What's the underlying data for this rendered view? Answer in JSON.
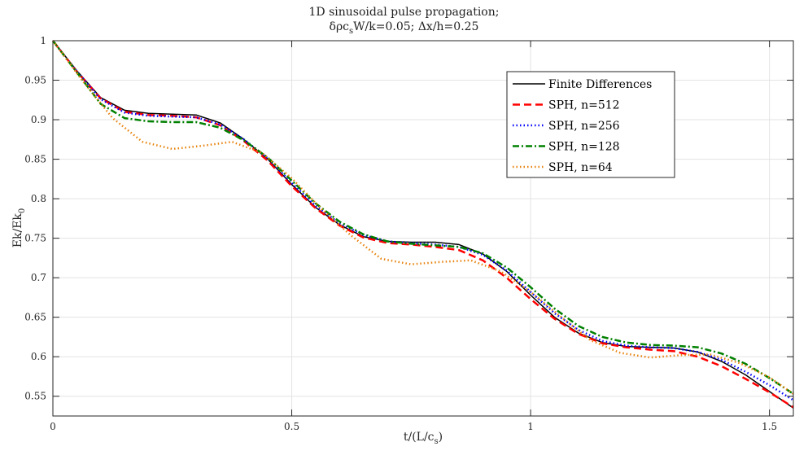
{
  "chart_data": {
    "type": "line",
    "title_line1": "1D sinusoidal pulse propagation;",
    "title_line2_prefix": "δρc",
    "title_line2_sub": "s",
    "title_line2_suffix": "W/k=0.05; Δx/h=0.25",
    "xlabel_prefix": "t/(L/c",
    "xlabel_sub": "s",
    "xlabel_suffix": ")",
    "ylabel_prefix": "Ek/Ek",
    "ylabel_sub": "0",
    "xlim": [
      0,
      1.55
    ],
    "ylim": [
      0.525,
      1.0
    ],
    "xticks": [
      0,
      0.5,
      1,
      1.5
    ],
    "xtick_labels": [
      "0",
      "0.5",
      "1",
      "1.5"
    ],
    "yticks": [
      0.55,
      0.6,
      0.65,
      0.7,
      0.75,
      0.8,
      0.85,
      0.9,
      0.95,
      1
    ],
    "ytick_labels": [
      "0.55",
      "0.6",
      "0.65",
      "0.7",
      "0.75",
      "0.8",
      "0.85",
      "0.9",
      "0.95",
      "1"
    ],
    "grid": true,
    "legend_position": "top-right",
    "series": [
      {
        "name": "Finite Differences",
        "color": "#000000",
        "style": "solid",
        "x": [
          0,
          0.05,
          0.1,
          0.15,
          0.2,
          0.25,
          0.3,
          0.35,
          0.4,
          0.45,
          0.5,
          0.55,
          0.6,
          0.65,
          0.7,
          0.75,
          0.8,
          0.85,
          0.9,
          0.95,
          1.0,
          1.05,
          1.1,
          1.15,
          1.2,
          1.25,
          1.3,
          1.35,
          1.4,
          1.45,
          1.5,
          1.55
        ],
        "y": [
          1.0,
          0.962,
          0.928,
          0.912,
          0.908,
          0.907,
          0.906,
          0.896,
          0.875,
          0.85,
          0.818,
          0.789,
          0.767,
          0.752,
          0.746,
          0.745,
          0.745,
          0.742,
          0.73,
          0.708,
          0.678,
          0.65,
          0.63,
          0.618,
          0.613,
          0.612,
          0.611,
          0.606,
          0.594,
          0.577,
          0.556,
          0.535
        ]
      },
      {
        "name": "SPH, n=512",
        "color": "#ff0000",
        "style": "dashed",
        "x": [
          0,
          0.05,
          0.1,
          0.15,
          0.2,
          0.25,
          0.3,
          0.35,
          0.4,
          0.45,
          0.5,
          0.55,
          0.6,
          0.65,
          0.7,
          0.75,
          0.8,
          0.85,
          0.9,
          0.95,
          1.0,
          1.05,
          1.1,
          1.15,
          1.2,
          1.25,
          1.3,
          1.35,
          1.4,
          1.45,
          1.5,
          1.55
        ],
        "y": [
          1.0,
          0.961,
          0.927,
          0.91,
          0.906,
          0.905,
          0.903,
          0.893,
          0.873,
          0.848,
          0.816,
          0.788,
          0.766,
          0.751,
          0.744,
          0.742,
          0.739,
          0.735,
          0.722,
          0.7,
          0.673,
          0.648,
          0.629,
          0.617,
          0.612,
          0.609,
          0.607,
          0.6,
          0.588,
          0.572,
          0.555,
          0.536
        ]
      },
      {
        "name": "SPH, n=256",
        "color": "#0000ff",
        "style": "dotted",
        "x": [
          0,
          0.05,
          0.1,
          0.15,
          0.2,
          0.25,
          0.3,
          0.35,
          0.4,
          0.45,
          0.5,
          0.55,
          0.6,
          0.65,
          0.7,
          0.75,
          0.8,
          0.85,
          0.9,
          0.95,
          1.0,
          1.05,
          1.1,
          1.15,
          1.2,
          1.25,
          1.3,
          1.35,
          1.4,
          1.45,
          1.5,
          1.55
        ],
        "y": [
          1.0,
          0.961,
          0.926,
          0.909,
          0.905,
          0.904,
          0.903,
          0.894,
          0.875,
          0.851,
          0.82,
          0.791,
          0.769,
          0.754,
          0.746,
          0.744,
          0.742,
          0.739,
          0.729,
          0.709,
          0.682,
          0.655,
          0.634,
          0.62,
          0.614,
          0.612,
          0.611,
          0.606,
          0.596,
          0.581,
          0.564,
          0.545
        ]
      },
      {
        "name": "SPH, n=128",
        "color": "#008000",
        "style": "dashdot",
        "x": [
          0,
          0.05,
          0.1,
          0.15,
          0.2,
          0.25,
          0.3,
          0.35,
          0.4,
          0.45,
          0.5,
          0.55,
          0.6,
          0.65,
          0.7,
          0.75,
          0.8,
          0.85,
          0.9,
          0.95,
          1.0,
          1.05,
          1.1,
          1.15,
          1.2,
          1.25,
          1.3,
          1.35,
          1.4,
          1.45,
          1.5,
          1.55
        ],
        "y": [
          1.0,
          0.96,
          0.92,
          0.902,
          0.898,
          0.897,
          0.897,
          0.89,
          0.874,
          0.852,
          0.823,
          0.794,
          0.771,
          0.755,
          0.746,
          0.743,
          0.741,
          0.739,
          0.731,
          0.713,
          0.688,
          0.661,
          0.639,
          0.625,
          0.618,
          0.615,
          0.614,
          0.612,
          0.604,
          0.591,
          0.573,
          0.553
        ]
      },
      {
        "name": "SPH, n=64",
        "color": "#e8820c",
        "style": "dotted",
        "x": [
          0,
          0.0625,
          0.125,
          0.1875,
          0.25,
          0.3125,
          0.375,
          0.4375,
          0.5,
          0.5625,
          0.625,
          0.6875,
          0.75,
          0.8125,
          0.875,
          0.9375,
          1.0,
          1.0625,
          1.125,
          1.1875,
          1.25,
          1.3125,
          1.375,
          1.4375,
          1.5,
          1.55
        ],
        "y": [
          1.0,
          0.949,
          0.902,
          0.872,
          0.863,
          0.867,
          0.872,
          0.858,
          0.826,
          0.787,
          0.753,
          0.724,
          0.717,
          0.72,
          0.722,
          0.708,
          0.682,
          0.651,
          0.621,
          0.605,
          0.599,
          0.602,
          0.603,
          0.592,
          0.574,
          0.553
        ]
      }
    ]
  }
}
